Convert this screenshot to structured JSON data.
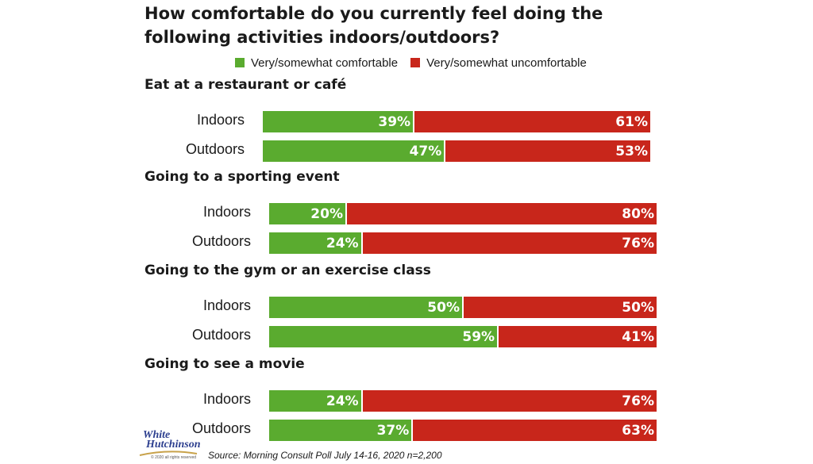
{
  "colors": {
    "comfortable": "#5aab2f",
    "uncomfortable": "#c8261b"
  },
  "chart_data": {
    "type": "bar",
    "orientation": "horizontal",
    "stacked": true,
    "percent_scale": [
      0,
      100
    ],
    "title_lines": [
      "How comfortable do you currently feel doing the",
      "following activities indoors/outdoors?"
    ],
    "legend": [
      "Very/somewhat comfortable",
      "Very/somewhat uncomfortable"
    ],
    "legend_position": "top",
    "groups": [
      {
        "title": "Eat at a restaurant or café",
        "rows": [
          {
            "label": "Indoors",
            "comfortable": 39,
            "uncomfortable": 61
          },
          {
            "label": "Outdoors",
            "comfortable": 47,
            "uncomfortable": 53
          }
        ]
      },
      {
        "title": "Going to a sporting event",
        "rows": [
          {
            "label": "Indoors",
            "comfortable": 20,
            "uncomfortable": 80
          },
          {
            "label": "Outdoors",
            "comfortable": 24,
            "uncomfortable": 76
          }
        ]
      },
      {
        "title": "Going to the gym or an exercise class",
        "rows": [
          {
            "label": "Indoors",
            "comfortable": 50,
            "uncomfortable": 50
          },
          {
            "label": "Outdoors",
            "comfortable": 59,
            "uncomfortable": 41
          }
        ]
      },
      {
        "title": "Going to see a movie",
        "rows": [
          {
            "label": "Indoors",
            "comfortable": 24,
            "uncomfortable": 76
          },
          {
            "label": "Outdoors",
            "comfortable": 37,
            "uncomfortable": 63
          }
        ]
      }
    ],
    "source": "Source: Morning Consult Poll July 14-16, 2020 n=2,200"
  },
  "logo": {
    "line1": "White",
    "line2": "Hutchinson",
    "line3": "© 2020 all rights reserved"
  }
}
